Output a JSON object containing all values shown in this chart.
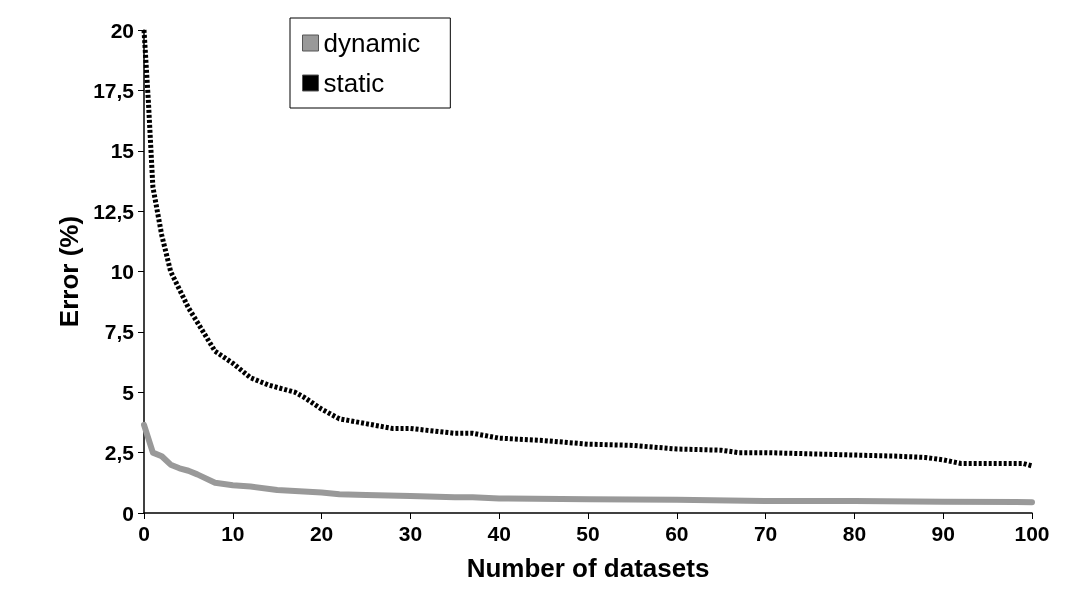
{
  "chart_data": {
    "type": "line",
    "xlabel": "Number of datasets",
    "ylabel": "Error (%)",
    "xlim": [
      0,
      100
    ],
    "xticks": [
      0,
      10,
      20,
      30,
      40,
      50,
      60,
      70,
      80,
      90,
      100
    ],
    "ylim": [
      0,
      20
    ],
    "yticks": [
      0,
      {
        "value": 2.5,
        "label": "2,5"
      },
      5,
      {
        "value": 7.5,
        "label": "7,5"
      },
      10,
      {
        "value": 12.5,
        "label": "12,5"
      },
      15,
      {
        "value": 17.5,
        "label": "17,5"
      },
      20
    ],
    "grid": false,
    "legend": "top left",
    "marker": "none",
    "x": [
      0,
      1,
      2,
      3,
      4,
      5,
      6,
      8,
      10,
      12,
      15,
      20,
      22,
      25,
      30,
      35,
      37,
      40,
      50,
      60,
      70,
      80,
      90,
      100
    ],
    "series": [
      {
        "name": "dynamic",
        "color": "#999999",
        "line_style": "solid",
        "values": [
          3.65,
          2.5,
          2.35,
          2.0,
          1.85,
          1.75,
          1.6,
          1.25,
          1.15,
          1.1,
          0.95,
          0.85,
          0.78,
          0.75,
          0.7,
          0.65,
          0.65,
          0.6,
          0.57,
          0.55,
          0.5,
          0.5,
          0.47,
          0.45
        ]
      },
      {
        "name": "static",
        "color": "#000000",
        "line_style": "dotted",
        "x": [
          0,
          0.5,
          1,
          2,
          3,
          5,
          8,
          10,
          12,
          14,
          17,
          18,
          20,
          22,
          25,
          28,
          30,
          35,
          37,
          40,
          45,
          50,
          55,
          60,
          65,
          67,
          70,
          75,
          80,
          85,
          88,
          90,
          92,
          95,
          99,
          100
        ],
        "values": [
          20,
          17,
          13.5,
          11.5,
          10,
          8.5,
          6.7,
          6.2,
          5.6,
          5.3,
          5.0,
          4.8,
          4.3,
          3.9,
          3.7,
          3.5,
          3.5,
          3.3,
          3.3,
          3.1,
          3.0,
          2.85,
          2.8,
          2.65,
          2.6,
          2.5,
          2.5,
          2.45,
          2.4,
          2.35,
          2.3,
          2.2,
          2.05,
          2.05,
          2.05,
          1.95
        ]
      }
    ]
  }
}
